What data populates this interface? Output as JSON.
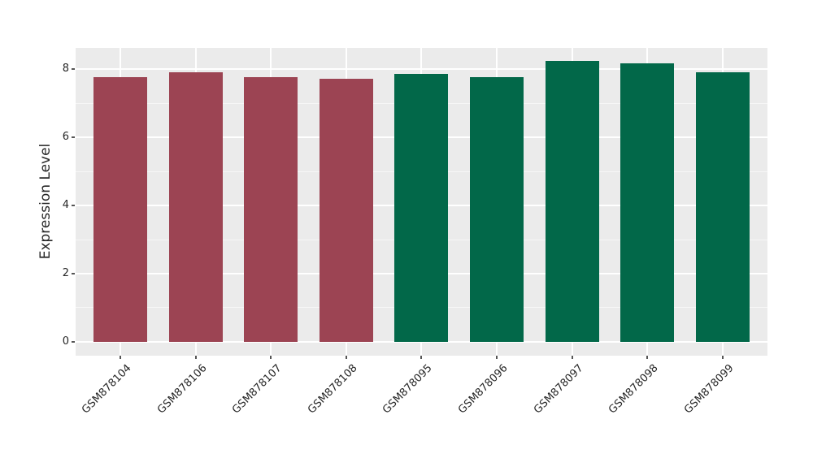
{
  "chart_data": {
    "type": "bar",
    "title": "",
    "xlabel": "",
    "ylabel": "Expression Level",
    "categories": [
      "GSM878104",
      "GSM878106",
      "GSM878107",
      "GSM878108",
      "GSM878095",
      "GSM878096",
      "GSM878097",
      "GSM878098",
      "GSM878099"
    ],
    "values": [
      7.77,
      7.91,
      7.77,
      7.73,
      7.87,
      7.77,
      8.24,
      8.18,
      7.91
    ],
    "bar_colors": [
      "#9C4453",
      "#9C4453",
      "#9C4453",
      "#9C4453",
      "#026849",
      "#026849",
      "#026849",
      "#026849",
      "#026849"
    ],
    "group_colors": {
      "left_group": "#9C4453",
      "right_group": "#026849"
    },
    "yticks": [
      0,
      2,
      4,
      6,
      8
    ],
    "minor_yticks": [
      1,
      3,
      5,
      7
    ],
    "ylim": [
      -0.41,
      8.63
    ],
    "grid": true,
    "legend": false,
    "x_tick_rotation_deg": 45,
    "panel_bg": "#EBEBEB",
    "grid_color": "#FFFFFF",
    "tick_mark_color": "#555555",
    "text_color": "#262626"
  }
}
